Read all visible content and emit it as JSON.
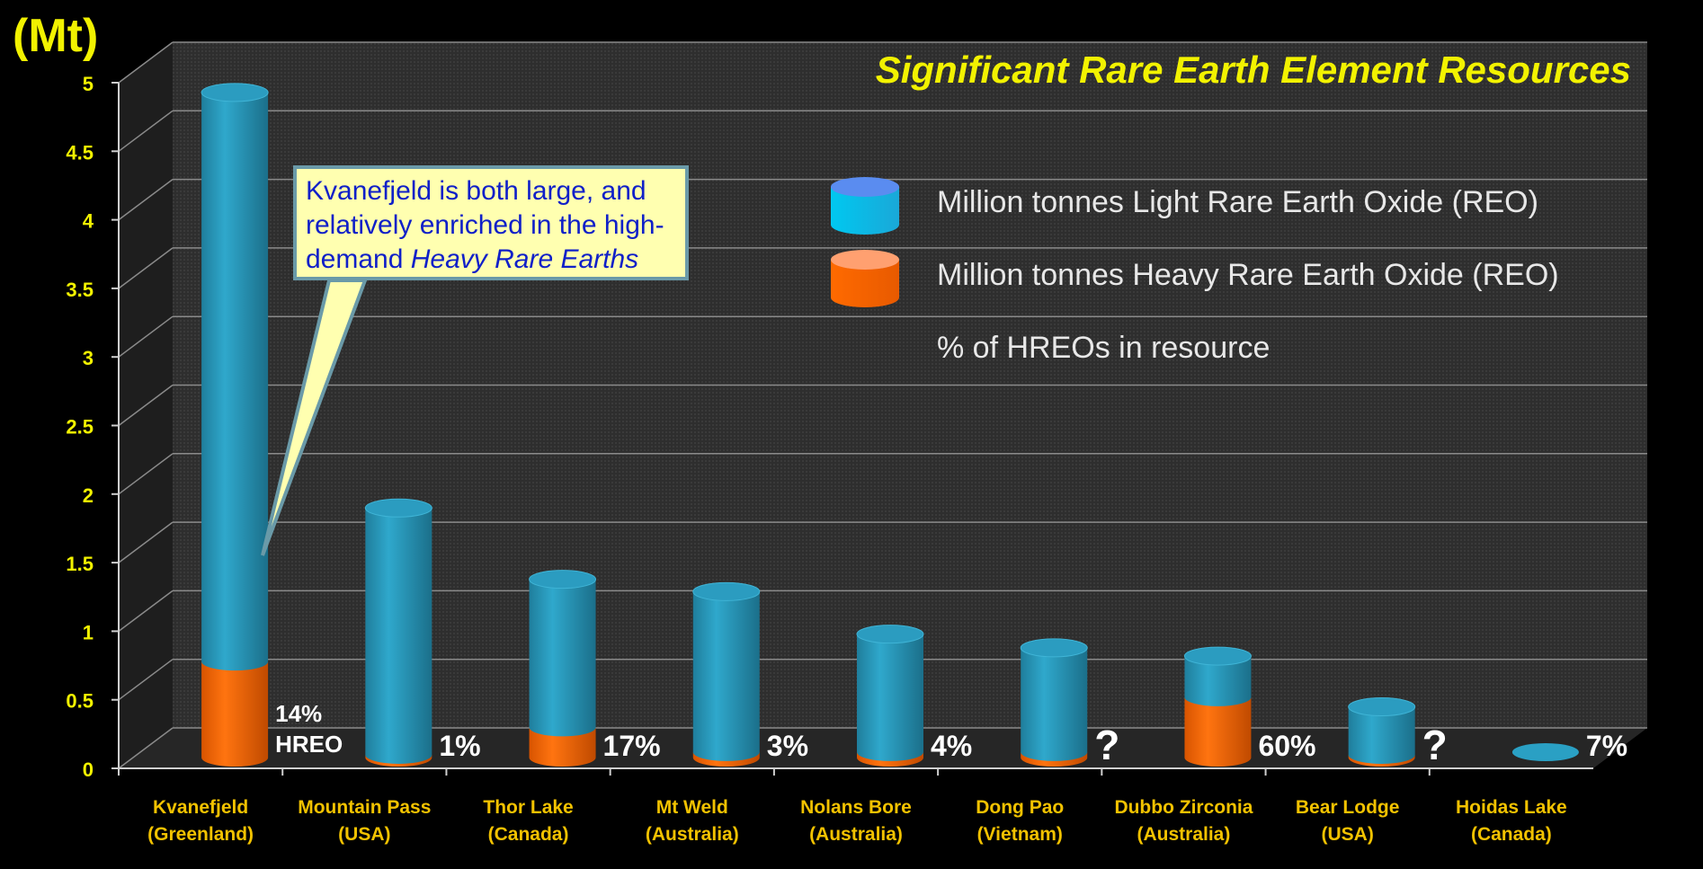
{
  "chart_data": {
    "type": "bar",
    "title": "Significant Rare Earth Element Resources",
    "unit_label": "(Mt)",
    "ylim": [
      0,
      5
    ],
    "yticks": [
      "0",
      "0.5",
      "1",
      "1.5",
      "2",
      "2.5",
      "3",
      "3.5",
      "4",
      "4.5",
      "5"
    ],
    "categories": [
      {
        "name": "Kvanefjeld",
        "region": "(Greenland)"
      },
      {
        "name": "Mountain Pass",
        "region": "(USA)"
      },
      {
        "name": "Thor Lake",
        "region": "(Canada)"
      },
      {
        "name": "Mt Weld",
        "region": "(Australia)"
      },
      {
        "name": "Nolans Bore",
        "region": "(Australia)"
      },
      {
        "name": "Dong Pao",
        "region": "(Vietnam)"
      },
      {
        "name": "Dubbo Zirconia",
        "region": "(Australia)"
      },
      {
        "name": "Bear Lodge",
        "region": "(USA)"
      },
      {
        "name": "Hoidas Lake",
        "region": "(Canada)"
      }
    ],
    "series": [
      {
        "name": "Million tonnes Light Rare Earth Oxide (REO)",
        "color": "#2aa0c4",
        "values": [
          4.15,
          1.8,
          1.08,
          1.17,
          0.86,
          0.76,
          0.3,
          0.35,
          0.07
        ]
      },
      {
        "name": "Million tonnes Heavy Rare Earth Oxide (REO)",
        "color": "#ff6a00",
        "values": [
          0.7,
          0.02,
          0.22,
          0.04,
          0.04,
          0.04,
          0.44,
          0.02,
          0.0
        ]
      }
    ],
    "hreo_labels": [
      "14%",
      "1%",
      "17%",
      "3%",
      "4%",
      "?",
      "60%",
      "?",
      "7%"
    ],
    "hreo_first_suffix": "HREO",
    "legend": {
      "light": "Million tonnes Light Rare Earth Oxide (REO)",
      "heavy": "Million tonnes Heavy Rare Earth Oxide (REO)",
      "pct": "% of HREOs in resource",
      "placement": "top-right"
    },
    "callout": {
      "line1": "Kvanefjeld is both large, and",
      "line2": "relatively enriched in the high-",
      "line3_prefix": "demand ",
      "line3_italic": "Heavy Rare Earths"
    },
    "grid": true
  },
  "colors": {
    "light": "#2aa0c4",
    "heavy": "#ff6a00",
    "title": "#f2f200",
    "axis_text": "#f2f200",
    "callout_bg": "#ffffb0",
    "callout_text": "#1020c8"
  }
}
